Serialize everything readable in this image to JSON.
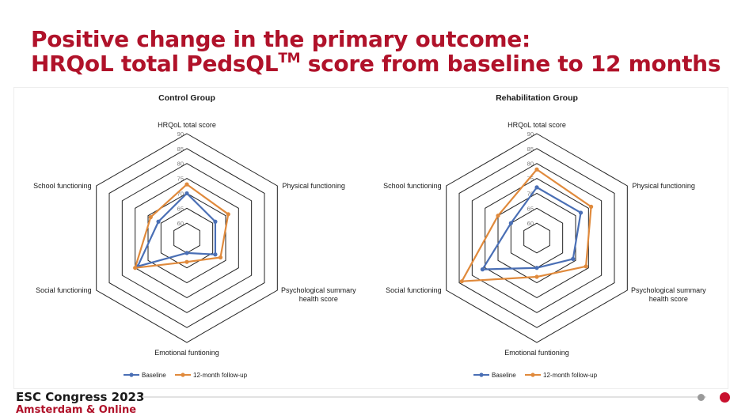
{
  "slide": {
    "title_line1": "Positive change in the primary outcome:",
    "title_line2_pre": "HRQoL total PedsQL",
    "title_sup": "TM",
    "title_line2_post": " score from baseline to 12 months"
  },
  "footer": {
    "conference": "ESC Congress 2023",
    "location": "Amsterdam & Online"
  },
  "colors": {
    "title": "#b0122a",
    "baseline": "#4a6fb5",
    "followup": "#e08a3c",
    "grid": "#222222"
  },
  "chart_data": [
    {
      "type": "radar",
      "title": "Control Group",
      "axes": [
        "HRQoL total score",
        "Physical functioning",
        "Psychological summary health score",
        "Emotional funtioning",
        "Social functioning",
        "School functioning"
      ],
      "rlim": [
        55,
        90
      ],
      "ticks": [
        60,
        65,
        70,
        75,
        80,
        85,
        90
      ],
      "grid": true,
      "legend_position": "bottom",
      "series": [
        {
          "name": "Baseline",
          "color": "#4a6fb5",
          "values": [
            70,
            66,
            66,
            60,
            74,
            66
          ]
        },
        {
          "name": "12-month follow-up",
          "color": "#e08a3c",
          "values": [
            73,
            71,
            68,
            63,
            75,
            69
          ]
        }
      ]
    },
    {
      "type": "radar",
      "title": "Rehabilitation Group",
      "axes": [
        "HRQoL total score",
        "Physical functioning",
        "Psychological summary health score",
        "Emotional funtioning",
        "Social functioning",
        "School functioning"
      ],
      "rlim": [
        55,
        90
      ],
      "ticks": [
        60,
        65,
        70,
        75,
        80,
        85,
        90
      ],
      "grid": true,
      "legend_position": "bottom",
      "series": [
        {
          "name": "Baseline",
          "color": "#4a6fb5",
          "values": [
            72,
            72,
            69,
            65,
            76,
            65
          ]
        },
        {
          "name": "12-month follow-up",
          "color": "#e08a3c",
          "values": [
            78,
            76,
            74,
            68,
            84,
            70
          ]
        }
      ]
    }
  ]
}
